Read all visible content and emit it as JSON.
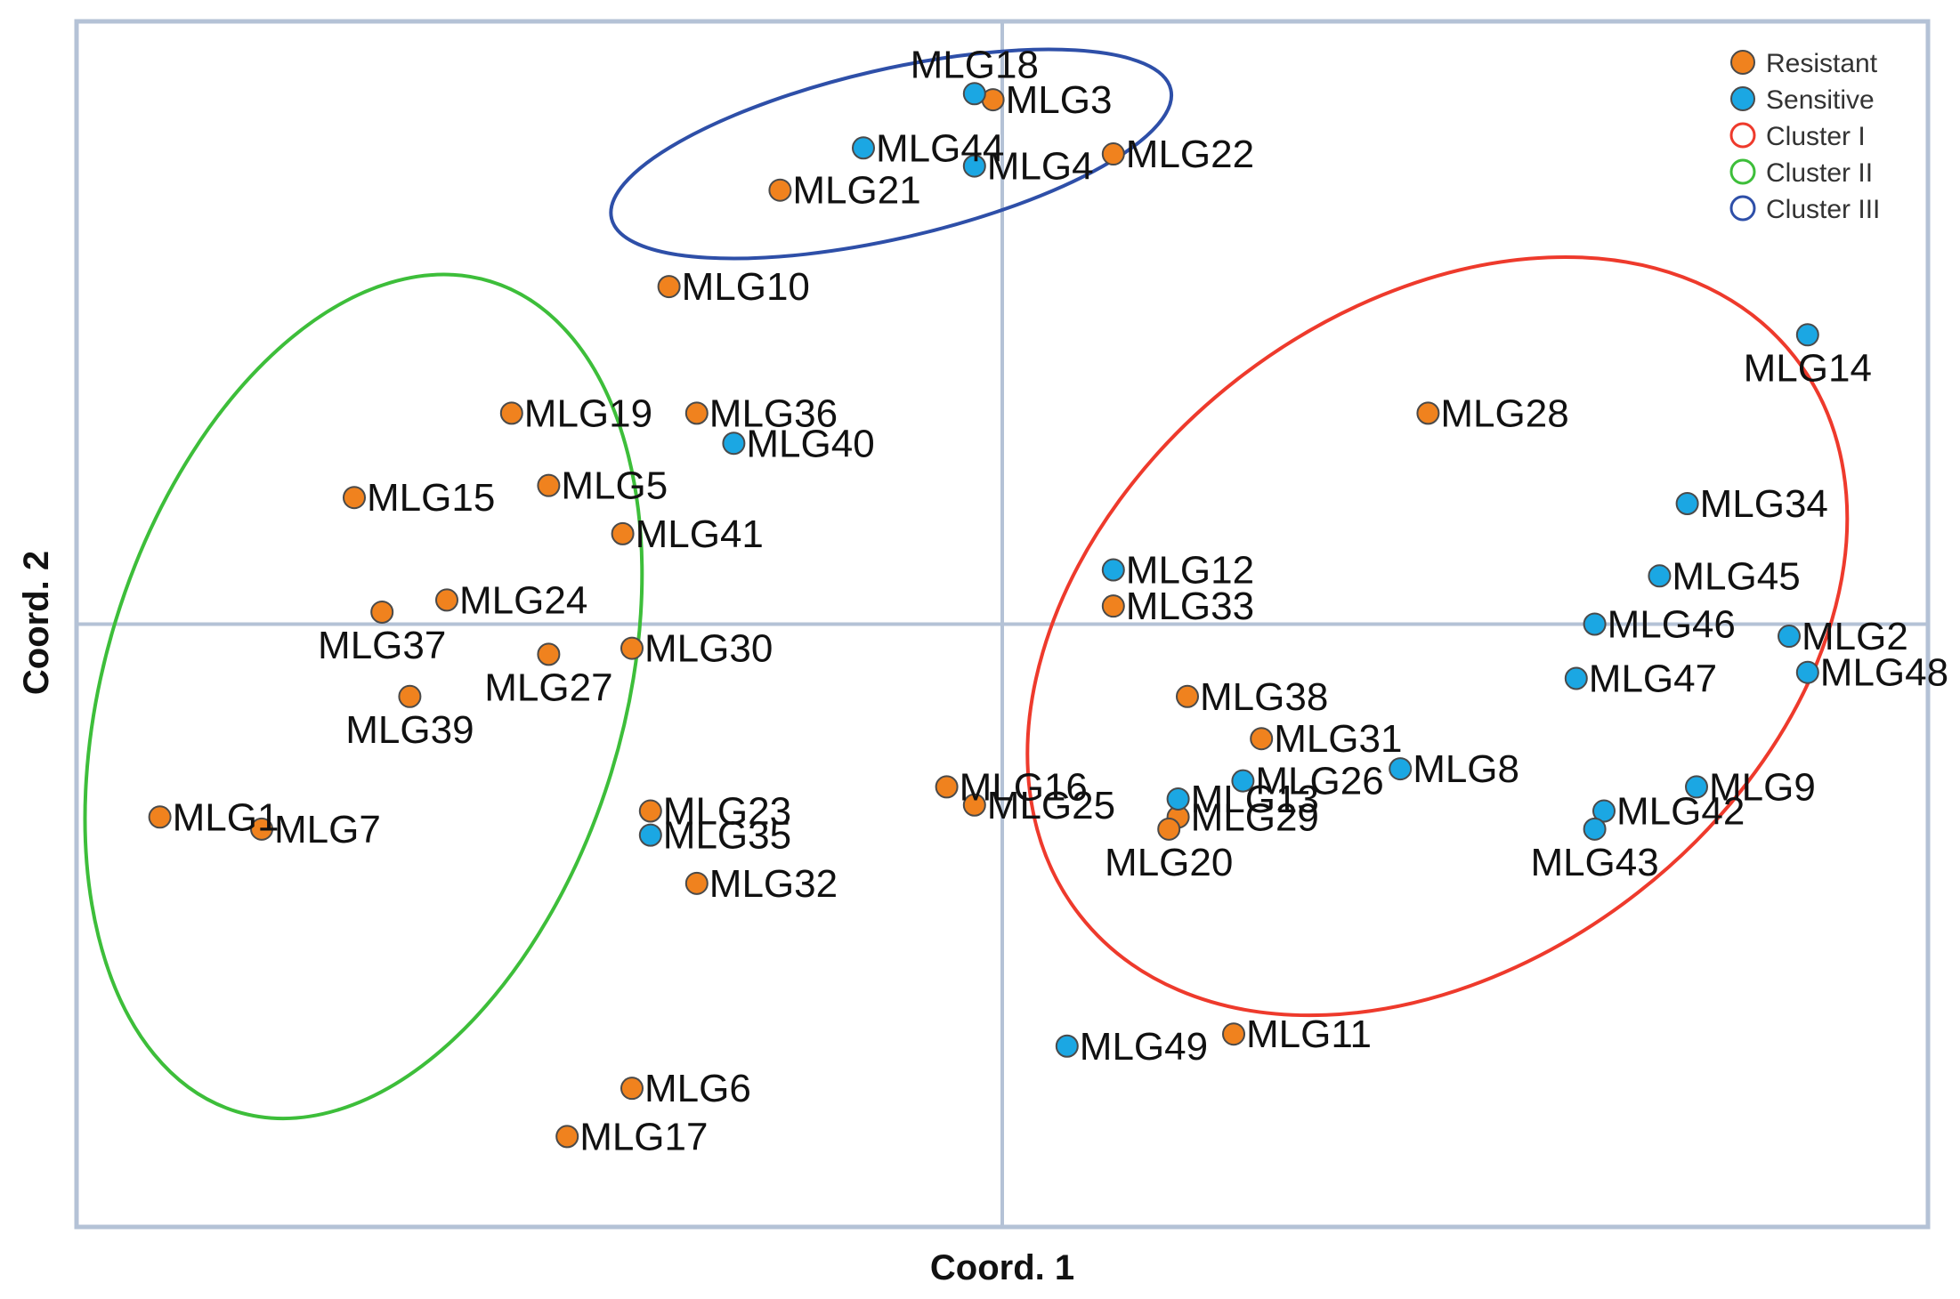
{
  "chart_data": {
    "type": "scatter",
    "title": "",
    "xlabel": "Coord. 1",
    "ylabel": "Coord. 2",
    "xlim": [
      -1.0,
      1.0
    ],
    "ylim": [
      -1.0,
      1.0
    ],
    "grid": false,
    "legend_position": "top-right",
    "colors": {
      "Resistant": "#f0821e",
      "Sensitive": "#1ba7e3",
      "Cluster I": "#ee3a2c",
      "Cluster II": "#3dbe3a",
      "Cluster III": "#2e4fa8"
    },
    "legend": [
      {
        "label": "Resistant",
        "kind": "filled",
        "color": "#f0821e"
      },
      {
        "label": "Sensitive",
        "kind": "filled",
        "color": "#1ba7e3"
      },
      {
        "label": "Cluster I",
        "kind": "ring",
        "color": "#ee3a2c"
      },
      {
        "label": "Cluster II",
        "kind": "ring",
        "color": "#3dbe3a"
      },
      {
        "label": "Cluster III",
        "kind": "ring",
        "color": "#2e4fa8"
      }
    ],
    "series": [
      {
        "name": "Resistant",
        "points": [
          {
            "label": "MLG3",
            "x": -0.01,
            "y": 0.87,
            "lp": "right"
          },
          {
            "label": "MLG22",
            "x": 0.12,
            "y": 0.78,
            "lp": "right"
          },
          {
            "label": "MLG21",
            "x": -0.24,
            "y": 0.72,
            "lp": "right"
          },
          {
            "label": "MLG10",
            "x": -0.36,
            "y": 0.56,
            "lp": "right"
          },
          {
            "label": "MLG19",
            "x": -0.53,
            "y": 0.35,
            "lp": "right"
          },
          {
            "label": "MLG36",
            "x": -0.33,
            "y": 0.35,
            "lp": "right"
          },
          {
            "label": "MLG15",
            "x": -0.7,
            "y": 0.21,
            "lp": "right"
          },
          {
            "label": "MLG5",
            "x": -0.49,
            "y": 0.23,
            "lp": "right"
          },
          {
            "label": "MLG41",
            "x": -0.41,
            "y": 0.15,
            "lp": "right"
          },
          {
            "label": "MLG24",
            "x": -0.6,
            "y": 0.04,
            "lp": "right"
          },
          {
            "label": "MLG37",
            "x": -0.67,
            "y": 0.02,
            "lp": "below"
          },
          {
            "label": "MLG27",
            "x": -0.49,
            "y": -0.05,
            "lp": "below"
          },
          {
            "label": "MLG30",
            "x": -0.4,
            "y": -0.04,
            "lp": "right"
          },
          {
            "label": "MLG39",
            "x": -0.64,
            "y": -0.12,
            "lp": "below"
          },
          {
            "label": "MLG1",
            "x": -0.91,
            "y": -0.32,
            "lp": "right"
          },
          {
            "label": "MLG7",
            "x": -0.8,
            "y": -0.34,
            "lp": "right"
          },
          {
            "label": "MLG23",
            "x": -0.38,
            "y": -0.31,
            "lp": "right"
          },
          {
            "label": "MLG32",
            "x": -0.33,
            "y": -0.43,
            "lp": "right"
          },
          {
            "label": "MLG6",
            "x": -0.4,
            "y": -0.77,
            "lp": "right"
          },
          {
            "label": "MLG17",
            "x": -0.47,
            "y": -0.85,
            "lp": "right"
          },
          {
            "label": "MLG28",
            "x": 0.46,
            "y": 0.35,
            "lp": "right"
          },
          {
            "label": "MLG33",
            "x": 0.12,
            "y": 0.03,
            "lp": "right"
          },
          {
            "label": "MLG38",
            "x": 0.2,
            "y": -0.12,
            "lp": "right"
          },
          {
            "label": "MLG31",
            "x": 0.28,
            "y": -0.19,
            "lp": "right"
          },
          {
            "label": "MLG16",
            "x": -0.06,
            "y": -0.27,
            "lp": "right"
          },
          {
            "label": "MLG25",
            "x": -0.03,
            "y": -0.3,
            "lp": "right"
          },
          {
            "label": "MLG29",
            "x": 0.19,
            "y": -0.32,
            "lp": "right"
          },
          {
            "label": "MLG20",
            "x": 0.18,
            "y": -0.34,
            "lp": "below"
          },
          {
            "label": "MLG11",
            "x": 0.25,
            "y": -0.68,
            "lp": "right"
          }
        ]
      },
      {
        "name": "Sensitive",
        "points": [
          {
            "label": "MLG18",
            "x": -0.03,
            "y": 0.88,
            "lp": "above"
          },
          {
            "label": "MLG44",
            "x": -0.15,
            "y": 0.79,
            "lp": "right"
          },
          {
            "label": "MLG4",
            "x": -0.03,
            "y": 0.76,
            "lp": "right"
          },
          {
            "label": "MLG40",
            "x": -0.29,
            "y": 0.3,
            "lp": "right"
          },
          {
            "label": "MLG14",
            "x": 0.87,
            "y": 0.48,
            "lp": "below"
          },
          {
            "label": "MLG34",
            "x": 0.74,
            "y": 0.2,
            "lp": "right"
          },
          {
            "label": "MLG12",
            "x": 0.12,
            "y": 0.09,
            "lp": "right"
          },
          {
            "label": "MLG45",
            "x": 0.71,
            "y": 0.08,
            "lp": "right"
          },
          {
            "label": "MLG46",
            "x": 0.64,
            "y": 0.0,
            "lp": "right"
          },
          {
            "label": "MLG2",
            "x": 0.85,
            "y": -0.02,
            "lp": "right"
          },
          {
            "label": "MLG47",
            "x": 0.62,
            "y": -0.09,
            "lp": "right"
          },
          {
            "label": "MLG48",
            "x": 0.87,
            "y": -0.08,
            "lp": "right"
          },
          {
            "label": "MLG26",
            "x": 0.26,
            "y": -0.26,
            "lp": "right"
          },
          {
            "label": "MLG8",
            "x": 0.43,
            "y": -0.24,
            "lp": "right"
          },
          {
            "label": "MLG13",
            "x": 0.19,
            "y": -0.29,
            "lp": "right"
          },
          {
            "label": "MLG9",
            "x": 0.75,
            "y": -0.27,
            "lp": "right"
          },
          {
            "label": "MLG42",
            "x": 0.65,
            "y": -0.31,
            "lp": "right"
          },
          {
            "label": "MLG43",
            "x": 0.64,
            "y": -0.34,
            "lp": "below"
          },
          {
            "label": "MLG35",
            "x": -0.38,
            "y": -0.35,
            "lp": "right"
          },
          {
            "label": "MLG49",
            "x": 0.07,
            "y": -0.7,
            "lp": "right"
          }
        ]
      }
    ],
    "clusters": [
      {
        "name": "Cluster I",
        "cx": 0.47,
        "cy": -0.02,
        "rx": 0.49,
        "ry": 0.54,
        "rotate": -38
      },
      {
        "name": "Cluster II",
        "cx": -0.69,
        "cy": -0.12,
        "rx": 0.28,
        "ry": 0.72,
        "rotate": 17
      },
      {
        "name": "Cluster III",
        "cx": -0.12,
        "cy": 0.78,
        "rx": 0.31,
        "ry": 0.14,
        "rotate": -13
      }
    ]
  }
}
